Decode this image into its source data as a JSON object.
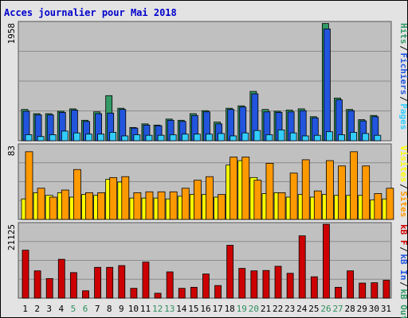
{
  "chart_data": {
    "type": "bar",
    "title": "Acces journalier pour Mai 2018",
    "categories": [
      "1",
      "2",
      "3",
      "4",
      "5",
      "6",
      "7",
      "8",
      "9",
      "10",
      "11",
      "12",
      "13",
      "14",
      "15",
      "16",
      "17",
      "18",
      "19",
      "20",
      "21",
      "22",
      "23",
      "24",
      "25",
      "26",
      "27",
      "28",
      "29",
      "30",
      "31"
    ],
    "weekend_days": [
      "5",
      "6",
      "12",
      "13",
      "19",
      "20",
      "26",
      "27"
    ],
    "panels": [
      {
        "max_label": "1958",
        "ylim": [
          0,
          1958
        ],
        "legend": [
          {
            "label": "Hits",
            "color": "#339966"
          },
          {
            "label": "Fichiers",
            "color": "#2255dd"
          },
          {
            "label": "Pages",
            "color": "#33ccff"
          }
        ],
        "series": [
          {
            "name": "Hits",
            "values": [
              520,
              450,
              450,
              490,
              530,
              340,
              480,
              750,
              540,
              220,
              280,
              260,
              360,
              340,
              450,
              500,
              310,
              540,
              580,
              820,
              520,
              490,
              510,
              530,
              400,
              1950,
              710,
              520,
              350,
              420,
              0
            ]
          },
          {
            "name": "Fichiers",
            "values": [
              490,
              430,
              430,
              470,
              510,
              320,
              450,
              460,
              520,
              210,
              260,
              250,
              340,
              320,
              420,
              480,
              280,
              520,
              560,
              780,
              480,
              470,
              480,
              500,
              380,
              1860,
              680,
              500,
              330,
              400,
              0
            ]
          },
          {
            "name": "Pages",
            "values": [
              100,
              70,
              100,
              160,
              130,
              110,
              110,
              140,
              80,
              100,
              90,
              90,
              100,
              110,
              110,
              110,
              120,
              80,
              130,
              170,
              100,
              180,
              130,
              80,
              90,
              150,
              100,
              140,
              120,
              90,
              0
            ]
          }
        ]
      },
      {
        "max_label": "83",
        "ylim": [
          0,
          83
        ],
        "legend": [
          {
            "label": "Visites",
            "color": "#ffff00"
          },
          {
            "label": "Sites",
            "color": "#ff9900"
          }
        ],
        "series": [
          {
            "name": "Visites",
            "values": [
              23,
              30,
              27,
              30,
              25,
              28,
              27,
              45,
              42,
              24,
              24,
              24,
              23,
              26,
              28,
              28,
              25,
              61,
              66,
              47,
              29,
              30,
              25,
              28,
              25,
              28,
              27,
              27,
              27,
              22,
              23
            ]
          },
          {
            "name": "Sites",
            "values": [
              76,
              35,
              25,
              33,
              56,
              30,
              30,
              47,
              48,
              30,
              31,
              31,
              31,
              35,
              44,
              48,
              28,
              70,
              70,
              44,
              63,
              30,
              52,
              67,
              32,
              66,
              60,
              76,
              60,
              29,
              35
            ]
          }
        ]
      },
      {
        "max_label": "21125",
        "ylim": [
          0,
          21125
        ],
        "legend": [
          {
            "label": "kB F",
            "color": "#cc0000"
          },
          {
            "label": "kB In",
            "color": "#2255dd"
          },
          {
            "label": "kB Out",
            "color": "#339966"
          }
        ],
        "series": [
          {
            "name": "kB F",
            "values": [
              13700,
              7800,
              5600,
              11100,
              7300,
              2100,
              8800,
              8800,
              9300,
              2800,
              10300,
              1400,
              7500,
              2800,
              3100,
              6900,
              3600,
              15100,
              8500,
              7800,
              7900,
              9100,
              7100,
              17800,
              6100,
              21100,
              3100,
              7800,
              4300,
              4400,
              5100
            ]
          }
        ]
      }
    ]
  }
}
